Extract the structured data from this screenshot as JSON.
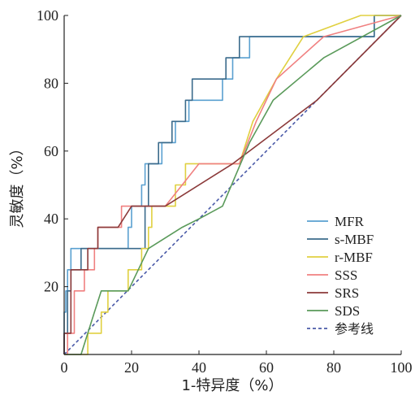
{
  "chart_data": {
    "type": "line",
    "title": "",
    "xlabel": "1-特异度（%）",
    "ylabel": "灵敏度（%）",
    "xlim": [
      0,
      100
    ],
    "ylim": [
      0,
      100
    ],
    "x_ticks": [
      "0",
      "20",
      "40",
      "60",
      "80",
      "100"
    ],
    "y_ticks": [
      "20",
      "40",
      "60",
      "80",
      "100"
    ],
    "grid": false,
    "legend_position": "bottom-right",
    "series": [
      {
        "name": "MFR",
        "color": "#5aa0d0",
        "dash": "",
        "points": [
          [
            0,
            0
          ],
          [
            0,
            12.5
          ],
          [
            0.5,
            12.5
          ],
          [
            0.5,
            18.75
          ],
          [
            1,
            18.75
          ],
          [
            1,
            25
          ],
          [
            2,
            25
          ],
          [
            2,
            31.25
          ],
          [
            9,
            31.25
          ],
          [
            19,
            31.25
          ],
          [
            19,
            37.5
          ],
          [
            20,
            37.5
          ],
          [
            20,
            43.75
          ],
          [
            23,
            43.75
          ],
          [
            23,
            50
          ],
          [
            24,
            50
          ],
          [
            24,
            56.25
          ],
          [
            29,
            56.25
          ],
          [
            29,
            62.5
          ],
          [
            33,
            62.5
          ],
          [
            33,
            68.75
          ],
          [
            37,
            68.75
          ],
          [
            37,
            75
          ],
          [
            47,
            75
          ],
          [
            47,
            81.25
          ],
          [
            50,
            81.25
          ],
          [
            50,
            87.5
          ],
          [
            55,
            87.5
          ],
          [
            55,
            93.75
          ],
          [
            92,
            93.75
          ],
          [
            92,
            100
          ],
          [
            100,
            100
          ]
        ]
      },
      {
        "name": "s-MBF",
        "color": "#3b6b8c",
        "dash": "",
        "points": [
          [
            0,
            0
          ],
          [
            0,
            6.25
          ],
          [
            1,
            6.25
          ],
          [
            1,
            18.75
          ],
          [
            2,
            18.75
          ],
          [
            2,
            25
          ],
          [
            5,
            25
          ],
          [
            5,
            31.25
          ],
          [
            10,
            31.25
          ],
          [
            24,
            31.25
          ],
          [
            24,
            43.75
          ],
          [
            25,
            43.75
          ],
          [
            25,
            56.25
          ],
          [
            28,
            56.25
          ],
          [
            28,
            62.5
          ],
          [
            32,
            62.5
          ],
          [
            32,
            68.75
          ],
          [
            36,
            68.75
          ],
          [
            36,
            75
          ],
          [
            38,
            75
          ],
          [
            38,
            81.25
          ],
          [
            48,
            81.25
          ],
          [
            48,
            87.5
          ],
          [
            52,
            87.5
          ],
          [
            52,
            93.75
          ],
          [
            92,
            93.75
          ],
          [
            92,
            100
          ],
          [
            100,
            100
          ]
        ]
      },
      {
        "name": "r-MBF",
        "color": "#e0d040",
        "dash": "",
        "points": [
          [
            0,
            0
          ],
          [
            7,
            0
          ],
          [
            7,
            6.25
          ],
          [
            11,
            6.25
          ],
          [
            11,
            12.5
          ],
          [
            13,
            12.5
          ],
          [
            13,
            18.75
          ],
          [
            19,
            18.75
          ],
          [
            19,
            25
          ],
          [
            23,
            25
          ],
          [
            23,
            31.25
          ],
          [
            25,
            31.25
          ],
          [
            25,
            37.5
          ],
          [
            26,
            37.5
          ],
          [
            26,
            43.75
          ],
          [
            33,
            43.75
          ],
          [
            33,
            50
          ],
          [
            36,
            50
          ],
          [
            36,
            56.25
          ],
          [
            52,
            56.25
          ],
          [
            56,
            68.75
          ],
          [
            63,
            81.25
          ],
          [
            71,
            93.75
          ],
          [
            88,
            100
          ],
          [
            100,
            100
          ]
        ]
      },
      {
        "name": "SSS",
        "color": "#f08080",
        "dash": "",
        "points": [
          [
            0,
            0
          ],
          [
            1,
            0
          ],
          [
            1,
            6.25
          ],
          [
            3,
            6.25
          ],
          [
            3,
            18.75
          ],
          [
            6,
            18.75
          ],
          [
            6,
            25
          ],
          [
            9,
            25
          ],
          [
            9,
            31.25
          ],
          [
            10,
            31.25
          ],
          [
            10,
            37.5
          ],
          [
            17,
            37.5
          ],
          [
            17,
            43.75
          ],
          [
            30,
            43.75
          ],
          [
            35,
            50
          ],
          [
            40,
            56.25
          ],
          [
            52,
            56.25
          ],
          [
            57,
            68.75
          ],
          [
            63,
            81.25
          ],
          [
            77,
            93.75
          ],
          [
            100,
            100
          ]
        ]
      },
      {
        "name": "SRS",
        "color": "#8b3a3a",
        "dash": "",
        "points": [
          [
            0,
            0
          ],
          [
            0,
            6.25
          ],
          [
            2,
            6.25
          ],
          [
            2,
            25
          ],
          [
            7,
            25
          ],
          [
            7,
            31.25
          ],
          [
            10,
            31.25
          ],
          [
            10,
            37.5
          ],
          [
            16,
            37.5
          ],
          [
            20,
            43.75
          ],
          [
            30,
            43.75
          ],
          [
            50,
            56.25
          ],
          [
            75,
            75
          ],
          [
            100,
            100
          ]
        ]
      },
      {
        "name": "SDS",
        "color": "#5a9a5a",
        "dash": "",
        "points": [
          [
            0,
            0
          ],
          [
            5,
            0
          ],
          [
            9,
            12.5
          ],
          [
            11,
            18.75
          ],
          [
            19,
            18.75
          ],
          [
            25,
            31.25
          ],
          [
            35,
            37.5
          ],
          [
            40,
            40
          ],
          [
            47,
            43.75
          ],
          [
            55,
            62.5
          ],
          [
            62,
            75
          ],
          [
            77,
            87.5
          ],
          [
            100,
            100
          ]
        ]
      },
      {
        "name": "参考线",
        "color": "#4a5aa8",
        "dash": "4,3",
        "points": [
          [
            0,
            0
          ],
          [
            100,
            100
          ]
        ]
      }
    ]
  }
}
